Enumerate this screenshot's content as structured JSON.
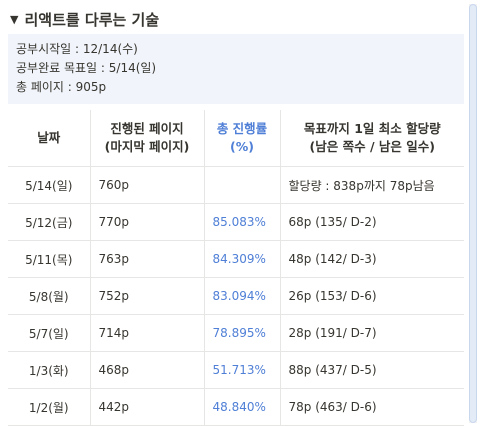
{
  "toggle": {
    "arrow": "▼",
    "title": "리액트를 다루는 기술"
  },
  "callout": {
    "lines": [
      "공부시작일 : 12/14(수)",
      "공부완료 목표일 : 5/14(일)",
      "총 페이지 : 905p"
    ]
  },
  "table": {
    "headers": [
      [
        "날짜"
      ],
      [
        "진행된 페이지",
        "(마지막 페이지)"
      ],
      [
        "총 진행률",
        "(%)"
      ],
      [
        "목표까지 1일 최소 할당량",
        "(남은 쪽수 / 남은 일수)"
      ]
    ],
    "rows": [
      [
        "5/14(일)",
        "760p",
        "",
        "할당량 : 838p까지 78p남음"
      ],
      [
        "5/12(금)",
        "770p",
        "85.083%",
        "68p (135/ D-2)"
      ],
      [
        "5/11(목)",
        "763p",
        "84.309%",
        "48p (142/ D-3)"
      ],
      [
        "5/8(월)",
        "752p",
        "83.094%",
        "26p (153/ D-6)"
      ],
      [
        "5/7(일)",
        "714p",
        "78.895%",
        "28p (191/ D-7)"
      ],
      [
        "1/3(화)",
        "468p",
        "51.713%",
        "88p (437/ D-5)"
      ],
      [
        "1/2(월)",
        "442p",
        "48.840%",
        "78p (463/ D-6)"
      ]
    ]
  },
  "colors": {
    "accent": "#4f7fd6",
    "callout_bg": "#f1f5fb",
    "border": "#e6e6e4"
  }
}
